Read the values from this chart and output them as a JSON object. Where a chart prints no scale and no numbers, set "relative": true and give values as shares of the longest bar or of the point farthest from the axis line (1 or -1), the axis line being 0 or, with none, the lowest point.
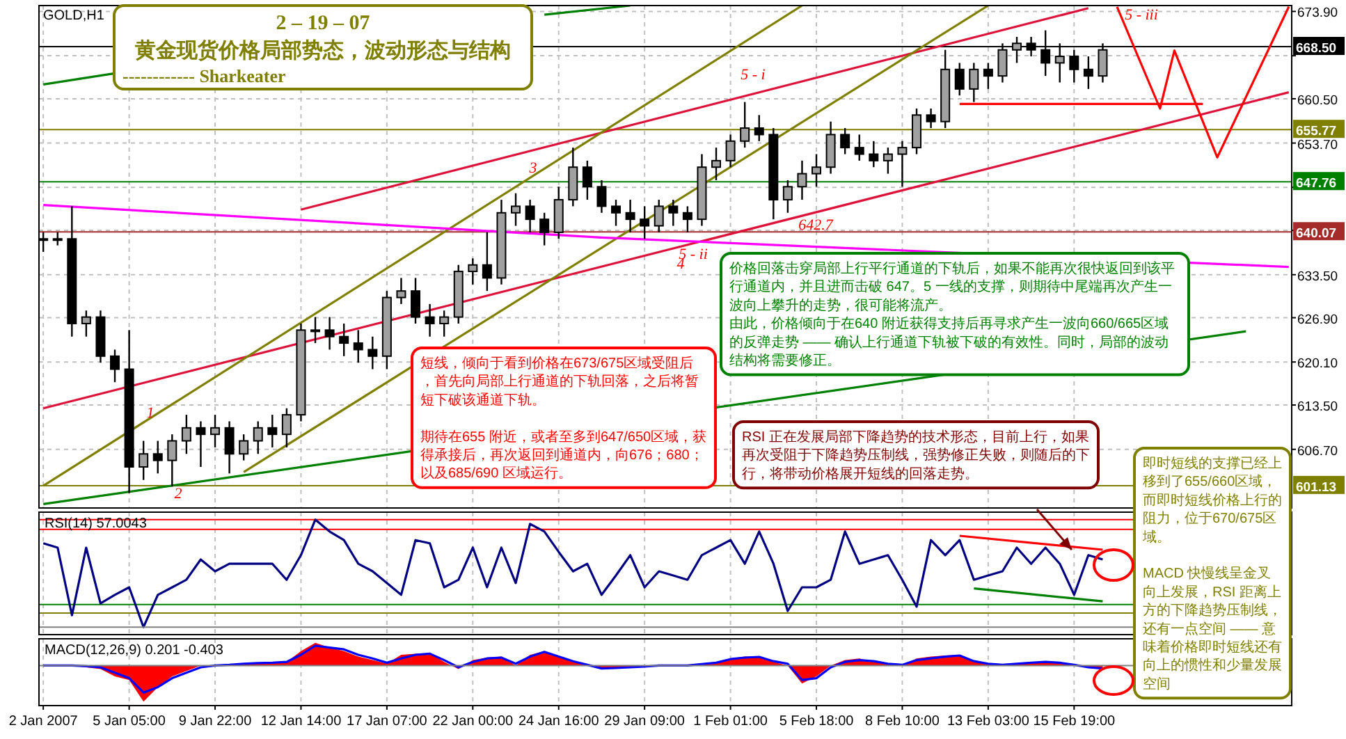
{
  "chart_data": [
    {
      "type": "candlestick",
      "title": "2 – 19 – 07",
      "subtitle": "黄金现货价格局部势态，波动形态与结构",
      "annotations": [
        "GOLD,H1",
        "------------  Sharkeater",
        "短线，倾向于看到价格在673/675区域受阻后，首先向局部上行通道的下轨回落，之后将暂短下破该通道下轨。",
        "期待在655 附近，或者至多到647/650区域，获得承接后，再次返回到通道内，向676；680；以及685/690 区域运行。",
        "价格回落击穿局部上行平行通道的下轨后，如果不能再次很快返回到该平行通道内，并且进而击破 647。5 一线的支撑，则期待中尾端再次产生一波向上攀升的走势，很可能将流产。",
        "由此，价格倾向于在640 附近获得支持后再寻求产生一波向660/665区域的反弹走势 —— 确认上行通道下轨被下破的有效性。同时，局部的波动结构将需要修正。",
        "即时短线的支撑已经上移到了655/660区域，而即时短线价格上行的阻力，位于670/675区域。",
        "MACD 快慢线呈金叉向上发展，RSI 距离上方的下降趋势压制线，还有一点空间 —— 意味着价格即时短线还有向上的惯性和少量发展空间",
        "1",
        "2",
        "3",
        "4",
        "5 - i",
        "5 - ii",
        "642.7",
        "5 - iii"
      ],
      "categories": [
        null,
        null,
        null,
        null,
        null,
        null,
        null,
        null,
        null,
        null,
        null,
        null,
        null,
        null,
        null,
        null,
        null,
        null,
        null,
        null,
        null,
        null,
        null,
        null,
        null,
        null,
        null,
        null,
        null,
        null,
        null,
        null,
        null,
        null,
        null,
        null,
        null,
        null,
        null,
        null,
        null,
        null,
        null,
        null,
        null,
        null,
        null,
        null,
        null,
        null,
        null,
        null,
        null,
        null,
        null,
        null,
        null,
        null,
        null,
        null,
        null,
        null,
        null,
        null,
        null,
        null,
        null,
        null,
        null,
        null,
        null,
        null,
        null,
        null,
        null,
        null,
        null,
        null,
        null,
        null,
        null,
        null,
        null,
        null,
        null,
        null,
        null,
        null
      ],
      "ohlc": [
        [
          639,
          640,
          637,
          639
        ],
        [
          639,
          640,
          638,
          639
        ],
        [
          639,
          644,
          624,
          626
        ],
        [
          626,
          628,
          624,
          627
        ],
        [
          627,
          628,
          620,
          621
        ],
        [
          621,
          622,
          617,
          619
        ],
        [
          619,
          625,
          600,
          604
        ],
        [
          604,
          608,
          602,
          606
        ],
        [
          606,
          608,
          603,
          605
        ],
        [
          605,
          609,
          601,
          608
        ],
        [
          608,
          612,
          606,
          610
        ],
        [
          610,
          611,
          604,
          609
        ],
        [
          609,
          612,
          607,
          610
        ],
        [
          610,
          611,
          603,
          606
        ],
        [
          606,
          609,
          605,
          608
        ],
        [
          608,
          611,
          606,
          610
        ],
        [
          610,
          612,
          607,
          609
        ],
        [
          609,
          613,
          607,
          612
        ],
        [
          612,
          626,
          611,
          625
        ],
        [
          625,
          627,
          623,
          625
        ],
        [
          625,
          627,
          622,
          624
        ],
        [
          624,
          626,
          621,
          623
        ],
        [
          623,
          625,
          620,
          622
        ],
        [
          622,
          624,
          619,
          621
        ],
        [
          621,
          631,
          619,
          630
        ],
        [
          630,
          633,
          629,
          631
        ],
        [
          631,
          633,
          626,
          627
        ],
        [
          627,
          629,
          624,
          626
        ],
        [
          626,
          628,
          624,
          627
        ],
        [
          627,
          635,
          626,
          634
        ],
        [
          634,
          636,
          632,
          635
        ],
        [
          635,
          640,
          631,
          633
        ],
        [
          633,
          645,
          632,
          643
        ],
        [
          643,
          646,
          641,
          644
        ],
        [
          644,
          645,
          640,
          642
        ],
        [
          642,
          643,
          638,
          640
        ],
        [
          640,
          647,
          639,
          645
        ],
        [
          645,
          653,
          644,
          650
        ],
        [
          650,
          651,
          645,
          647
        ],
        [
          647,
          648,
          643,
          644
        ],
        [
          644,
          645,
          641,
          643
        ],
        [
          643,
          645,
          640,
          642
        ],
        [
          642,
          644,
          639,
          641
        ],
        [
          641,
          645,
          640,
          644
        ],
        [
          644,
          645,
          641,
          643
        ],
        [
          643,
          644,
          640,
          642
        ],
        [
          642,
          652,
          641,
          650
        ],
        [
          650,
          653,
          648,
          651
        ],
        [
          651,
          655,
          650,
          654
        ],
        [
          654,
          660,
          653,
          656
        ],
        [
          656,
          658,
          654,
          655
        ],
        [
          655,
          656,
          642,
          645
        ],
        [
          645,
          648,
          643,
          647
        ],
        [
          647,
          651,
          645,
          649
        ],
        [
          649,
          652,
          647,
          650
        ],
        [
          650,
          657,
          649,
          655
        ],
        [
          655,
          656,
          652,
          653
        ],
        [
          653,
          655,
          651,
          652
        ],
        [
          652,
          654,
          650,
          651
        ],
        [
          651,
          653,
          649,
          652
        ],
        [
          652,
          654,
          647,
          653
        ],
        [
          653,
          659,
          652,
          658
        ],
        [
          658,
          659,
          656,
          657
        ],
        [
          657,
          668,
          656,
          665
        ],
        [
          665,
          666,
          661,
          662
        ],
        [
          662,
          666,
          660,
          665
        ],
        [
          665,
          666,
          662,
          664
        ],
        [
          664,
          669,
          663,
          668
        ],
        [
          668,
          670,
          666,
          669
        ],
        [
          669,
          670,
          667,
          668
        ],
        [
          668,
          671,
          664,
          666
        ],
        [
          666,
          669,
          663,
          667
        ],
        [
          667,
          668,
          663,
          665
        ],
        [
          665,
          667,
          662,
          664
        ],
        [
          664,
          669,
          663,
          668
        ],
        null,
        null,
        null,
        null,
        null,
        null,
        null,
        null,
        null,
        null,
        null,
        null,
        null
      ],
      "series": [
        {
          "type": "line",
          "color": "#dc143c",
          "values": [
            null,
            null,
            null,
            null,
            null,
            null,
            null,
            null,
            null,
            null,
            null,
            null,
            null,
            null,
            null,
            null,
            null,
            null,
            643.5,
            null,
            null,
            null,
            null,
            null,
            null,
            null,
            null,
            null,
            null,
            null,
            null,
            null,
            null,
            null,
            null,
            null,
            null,
            null,
            null,
            null,
            null,
            null,
            null,
            null,
            null,
            null,
            null,
            null,
            null,
            null,
            null,
            null,
            null,
            null,
            null,
            null,
            null,
            null,
            null,
            null,
            null,
            null,
            null,
            null,
            null,
            null,
            null,
            null,
            null,
            null,
            null,
            null,
            null,
            674.4,
            null,
            null,
            null,
            null,
            null,
            null,
            null,
            null,
            null,
            null,
            null,
            null,
            null,
            null
          ]
        },
        {
          "type": "line",
          "color": "#dc143c",
          "values": [
            613.0,
            null,
            null,
            null,
            null,
            null,
            null,
            null,
            null,
            null,
            null,
            null,
            null,
            null,
            null,
            null,
            null,
            null,
            null,
            null,
            null,
            null,
            null,
            null,
            null,
            null,
            null,
            null,
            null,
            null,
            null,
            null,
            null,
            null,
            null,
            null,
            null,
            null,
            null,
            null,
            null,
            null,
            null,
            null,
            null,
            null,
            null,
            null,
            null,
            null,
            null,
            null,
            null,
            null,
            null,
            null,
            null,
            null,
            null,
            null,
            null,
            null,
            null,
            null,
            null,
            null,
            null,
            null,
            null,
            null,
            null,
            null,
            null,
            null,
            null,
            null,
            null,
            null,
            null,
            null,
            null,
            null,
            null,
            null,
            null,
            null,
            null,
            661.5
          ]
        },
        {
          "type": "line",
          "color": "#ff0000",
          "values": [
            null,
            null,
            null,
            null,
            null,
            null,
            null,
            null,
            null,
            null,
            null,
            null,
            null,
            null,
            null,
            null,
            null,
            null,
            null,
            null,
            null,
            null,
            null,
            null,
            null,
            null,
            null,
            null,
            null,
            null,
            null,
            null,
            null,
            null,
            null,
            null,
            null,
            null,
            null,
            null,
            null,
            null,
            null,
            null,
            null,
            null,
            null,
            null,
            null,
            null,
            null,
            null,
            null,
            null,
            null,
            null,
            null,
            null,
            null,
            null,
            null,
            null,
            null,
            null,
            659.7,
            null,
            null,
            null,
            null,
            null,
            null,
            null,
            null,
            null,
            null,
            null,
            null,
            null,
            null,
            null,
            null,
            659.7,
            null,
            null,
            null,
            null,
            null,
            null
          ]
        },
        {
          "type": "line",
          "color": "#ff0000",
          "values": [
            null,
            null,
            null,
            null,
            null,
            null,
            null,
            null,
            null,
            null,
            null,
            null,
            null,
            null,
            null,
            null,
            null,
            null,
            null,
            null,
            null,
            null,
            null,
            null,
            null,
            null,
            null,
            null,
            null,
            null,
            null,
            null,
            null,
            null,
            null,
            null,
            null,
            null,
            null,
            null,
            null,
            null,
            null,
            null,
            null,
            null,
            null,
            null,
            null,
            null,
            null,
            null,
            null,
            null,
            null,
            null,
            null,
            null,
            null,
            null,
            null,
            null,
            null,
            null,
            null,
            null,
            null,
            null,
            null,
            null,
            null,
            null,
            null,
            null,
            null,
            674.6,
            null,
            null,
            659.0,
            667.9,
            null,
            null,
            651.5,
            null,
            null,
            null,
            null,
            674.6
          ]
        },
        {
          "type": "line",
          "color": "#008000",
          "values": [
            662.7,
            null,
            null,
            null,
            null,
            664.4,
            null,
            null,
            null,
            null,
            null,
            null,
            null,
            null,
            null,
            null,
            null,
            null,
            null,
            null,
            null,
            null,
            null,
            null,
            null,
            null,
            null,
            null,
            null,
            null,
            null,
            null,
            null,
            null,
            null,
            null,
            null,
            null,
            null,
            null,
            null,
            null,
            null,
            null,
            null,
            null,
            null,
            null,
            null,
            null,
            null,
            null,
            null,
            null,
            null,
            null,
            null,
            null,
            null,
            null,
            null,
            null,
            null,
            null,
            null,
            null,
            null,
            null,
            null,
            null,
            null,
            null,
            null,
            null,
            null,
            null,
            null,
            null,
            null,
            null,
            null,
            null,
            null,
            null,
            null,
            null,
            null,
            null
          ]
        },
        {
          "type": "line",
          "color": "#008000",
          "values": [
            null,
            null,
            null,
            null,
            null,
            null,
            null,
            null,
            null,
            null,
            null,
            null,
            null,
            null,
            null,
            null,
            null,
            null,
            null,
            null,
            null,
            null,
            null,
            null,
            null,
            null,
            null,
            null,
            null,
            null,
            null,
            null,
            null,
            null,
            null,
            673.4,
            null,
            null,
            null,
            null,
            null,
            674.8,
            null,
            null,
            null,
            null,
            null,
            null,
            null,
            null,
            null,
            null,
            null,
            null,
            null,
            null,
            null,
            null,
            null,
            null,
            null,
            null,
            null,
            null,
            null,
            null,
            null,
            null,
            null,
            null,
            null,
            null,
            null,
            null,
            null,
            null,
            null,
            null,
            null,
            null,
            null,
            null,
            null,
            null,
            null,
            null,
            null,
            null
          ]
        },
        {
          "type": "line",
          "color": "#008000",
          "values": [
            598.3,
            null,
            null,
            null,
            null,
            null,
            null,
            null,
            null,
            null,
            null,
            null,
            null,
            null,
            null,
            null,
            null,
            null,
            null,
            null,
            null,
            null,
            null,
            null,
            null,
            null,
            null,
            null,
            null,
            null,
            null,
            null,
            null,
            null,
            null,
            null,
            null,
            null,
            null,
            null,
            null,
            null,
            null,
            null,
            null,
            null,
            null,
            null,
            null,
            null,
            null,
            null,
            null,
            null,
            null,
            null,
            null,
            null,
            null,
            null,
            null,
            null,
            null,
            null,
            null,
            null,
            null,
            null,
            null,
            null,
            null,
            null,
            null,
            null,
            null,
            null,
            null,
            null,
            null,
            null,
            null,
            null,
            null,
            null,
            624.8,
            null,
            null,
            null
          ]
        },
        {
          "type": "line",
          "color": "#808000",
          "values": [
            null,
            null,
            null,
            null,
            null,
            null,
            null,
            null,
            null,
            null,
            null,
            null,
            null,
            null,
            603.2,
            null,
            null,
            null,
            null,
            null,
            null,
            null,
            null,
            null,
            null,
            null,
            null,
            null,
            null,
            null,
            null,
            null,
            null,
            null,
            null,
            null,
            null,
            null,
            null,
            null,
            null,
            null,
            null,
            null,
            null,
            null,
            null,
            null,
            null,
            null,
            null,
            null,
            null,
            null,
            null,
            null,
            null,
            null,
            null,
            null,
            null,
            null,
            null,
            null,
            null,
            null,
            674.8,
            null,
            null,
            null,
            null,
            null,
            null,
            null,
            null,
            null,
            null,
            null,
            null,
            null,
            null,
            null,
            null,
            null,
            null,
            null,
            null,
            null
          ]
        },
        {
          "type": "line",
          "color": "#808000",
          "values": [
            601.1,
            null,
            null,
            null,
            null,
            null,
            null,
            null,
            null,
            null,
            null,
            null,
            null,
            null,
            null,
            null,
            null,
            null,
            null,
            null,
            null,
            null,
            null,
            null,
            null,
            null,
            null,
            null,
            null,
            null,
            null,
            null,
            null,
            null,
            null,
            null,
            null,
            null,
            null,
            null,
            null,
            null,
            null,
            null,
            null,
            null,
            null,
            null,
            null,
            null,
            null,
            null,
            null,
            674.8,
            null,
            null,
            null,
            null,
            null,
            null,
            null,
            null,
            null,
            null,
            null,
            null,
            null,
            null,
            null,
            null,
            null,
            null,
            null,
            null,
            null,
            null,
            null,
            null,
            null,
            null,
            null,
            null,
            null,
            null,
            null,
            null,
            null,
            null
          ]
        },
        {
          "type": "line",
          "color": "#ff00ff",
          "values": [
            644.2,
            null,
            null,
            null,
            null,
            null,
            null,
            null,
            null,
            null,
            null,
            null,
            null,
            null,
            null,
            null,
            null,
            null,
            null,
            null,
            null,
            null,
            null,
            null,
            null,
            null,
            null,
            null,
            null,
            null,
            null,
            null,
            null,
            null,
            null,
            null,
            null,
            null,
            null,
            639.2,
            null,
            null,
            null,
            null,
            null,
            null,
            null,
            null,
            null,
            null,
            null,
            null,
            null,
            null,
            null,
            null,
            null,
            null,
            null,
            null,
            null,
            null,
            null,
            null,
            null,
            null,
            null,
            null,
            null,
            null,
            null,
            null,
            null,
            null,
            null,
            null,
            null,
            null,
            null,
            null,
            null,
            null,
            null,
            null,
            null,
            null,
            null,
            634.7
          ]
        }
      ],
      "ref_lines": [
        {
          "axis": "y",
          "value": 668.5,
          "label": "668.50",
          "color": "#000000"
        },
        {
          "axis": "y",
          "value": 655.77,
          "label": "655.77",
          "color": "#808000"
        },
        {
          "axis": "y",
          "value": 647.76,
          "label": "647.76",
          "color": "#008000"
        },
        {
          "axis": "y",
          "value": 640.07,
          "label": "640.07",
          "color": "#a52a2a"
        },
        {
          "axis": "y",
          "value": 601.13,
          "label": "601.13",
          "color": "#808000"
        }
      ],
      "ylim": [
        597.7,
        674.8
      ],
      "yticks": [
        {
          "value": 673.9,
          "label": "673.90"
        },
        {
          "value": 667.1,
          "label": null
        },
        {
          "value": 660.5,
          "label": "660.50"
        },
        {
          "value": 653.7,
          "label": "653.70"
        },
        {
          "value": 646.9,
          "label": null
        },
        {
          "value": 640.3,
          "label": null
        },
        {
          "value": 633.5,
          "label": "633.50"
        },
        {
          "value": 626.9,
          "label": "626.90"
        },
        {
          "value": 620.1,
          "label": "620.10"
        },
        {
          "value": 613.5,
          "label": "613.50"
        },
        {
          "value": 606.7,
          "label": "606.70"
        }
      ],
      "grid": true,
      "tick_labels": "y"
    },
    {
      "type": "line",
      "title": "RSI(14) 57.0043",
      "relative": true,
      "annotations": [
        "RSI 正在发展局部下降趋势的技术形态，目前上行，如果再次受阻于下降趋势压制线，强势修正失败，则随后的下行，将带动价格展开短线的回落走势。"
      ],
      "categories": [
        null,
        null,
        null,
        null,
        null,
        null,
        null,
        null,
        null,
        null,
        null,
        null,
        null,
        null,
        null,
        null,
        null,
        null,
        null,
        null,
        null,
        null,
        null,
        null,
        null,
        null,
        null,
        null,
        null,
        null,
        null,
        null,
        null,
        null,
        null,
        null,
        null,
        null,
        null,
        null,
        null,
        null,
        null,
        null,
        null,
        null,
        null,
        null,
        null,
        null,
        null,
        null,
        null,
        null,
        null,
        null,
        null,
        null,
        null,
        null,
        null,
        null,
        null,
        null,
        null,
        null,
        null,
        null,
        null,
        null,
        null,
        null,
        null,
        null,
        null
      ],
      "series": [
        {
          "color": "#000080",
          "values": [
            0.78,
            0.74,
            0.11,
            0.74,
            0.22,
            0.3,
            0.37,
            0,
            0.3,
            0.37,
            0.44,
            0.63,
            0.52,
            0.59,
            0.59,
            0.59,
            0.59,
            0.44,
            0.67,
            1,
            0.89,
            0.81,
            0.59,
            0.52,
            0.41,
            0.3,
            0.81,
            0.78,
            0.37,
            0.44,
            0.74,
            0.37,
            0.74,
            0.41,
            0.96,
            0.89,
            0.7,
            0.52,
            0.59,
            0.3,
            0.48,
            0.67,
            0.37,
            0.52,
            0.48,
            0.44,
            0.67,
            0.74,
            0.81,
            0.59,
            0.89,
            0.59,
            0.15,
            0.37,
            0.37,
            0.44,
            0.89,
            0.59,
            0.63,
            0.67,
            0.44,
            0.19,
            0.81,
            0.67,
            0.81,
            0.44,
            0.48,
            0.52,
            0.74,
            0.59,
            0.74,
            0.59,
            0.3,
            0.67,
            0.63
          ]
        },
        {
          "color": "#ff0000",
          "values": [
            null,
            null,
            null,
            null,
            null,
            null,
            null,
            null,
            null,
            null,
            null,
            null,
            null,
            null,
            null,
            null,
            null,
            null,
            null,
            null,
            null,
            null,
            null,
            null,
            null,
            null,
            null,
            null,
            null,
            null,
            null,
            null,
            null,
            null,
            null,
            null,
            null,
            null,
            null,
            null,
            null,
            null,
            null,
            null,
            null,
            null,
            null,
            null,
            null,
            null,
            null,
            null,
            null,
            null,
            null,
            null,
            null,
            null,
            null,
            null,
            null,
            null,
            null,
            null,
            0.85,
            null,
            null,
            null,
            null,
            null,
            null,
            null,
            null,
            null,
            0.72
          ]
        },
        {
          "color": "#008000",
          "values": [
            null,
            null,
            null,
            null,
            null,
            null,
            null,
            null,
            null,
            null,
            null,
            null,
            null,
            null,
            null,
            null,
            null,
            null,
            null,
            null,
            null,
            null,
            null,
            null,
            null,
            null,
            null,
            null,
            null,
            null,
            null,
            null,
            null,
            null,
            null,
            null,
            null,
            null,
            null,
            null,
            null,
            null,
            null,
            null,
            null,
            null,
            null,
            null,
            null,
            null,
            null,
            null,
            null,
            null,
            null,
            null,
            null,
            null,
            null,
            null,
            null,
            null,
            null,
            null,
            null,
            0.36,
            null,
            null,
            null,
            null,
            null,
            null,
            null,
            null,
            0.24
          ]
        }
      ],
      "ref_lines": [
        {
          "axis": "y",
          "value": 1,
          "color": "#ff0000"
        },
        {
          "axis": "y",
          "value": 0.91,
          "color": "#ff0000"
        },
        {
          "axis": "y",
          "value": 0.21,
          "color": "#008000"
        },
        {
          "axis": "y",
          "value": 0.13,
          "color": "#808000"
        }
      ],
      "grid": "x",
      "tick_labels": false
    },
    {
      "type": "area",
      "title": "MACD(12,26,9) 0.201 -0.403",
      "relative": true,
      "categories": [
        "2 Jan 2007",
        null,
        null,
        null,
        null,
        null,
        "5 Jan 05:00",
        null,
        null,
        null,
        null,
        null,
        "9 Jan 22:00",
        null,
        null,
        null,
        null,
        null,
        "12 Jan 14:00",
        null,
        null,
        null,
        null,
        null,
        "17 Jan 07:00",
        null,
        null,
        null,
        null,
        null,
        "22 Jan 00:00",
        null,
        null,
        null,
        null,
        null,
        "24 Jan 16:00",
        null,
        null,
        null,
        null,
        null,
        "29 Jan 09:00",
        null,
        null,
        null,
        null,
        null,
        "1 Feb 01:00",
        null,
        null,
        null,
        null,
        null,
        "5 Feb 18:00",
        null,
        null,
        null,
        null,
        null,
        "8 Feb 10:00",
        null,
        null,
        null,
        null,
        null,
        "13 Feb 03:00",
        null,
        null,
        null,
        null,
        null,
        "15 Feb 19:00",
        null,
        null,
        null,
        null,
        null,
        null,
        null,
        null,
        null,
        null,
        null,
        null,
        null,
        null,
        null
      ],
      "series": [
        {
          "type": "area",
          "color": "#ff0000",
          "values": [
            0,
            0,
            0,
            -0.05,
            -0.1,
            -0.3,
            -0.4,
            -1,
            -0.6,
            -0.3,
            -0.15,
            0,
            0,
            0.02,
            0.05,
            0.07,
            0.08,
            0.1,
            0.4,
            0.63,
            0.5,
            0.4,
            0.25,
            0.15,
            0.05,
            0.3,
            0.33,
            0.35,
            0.1,
            -0.1,
            0.15,
            0.22,
            0.25,
            0,
            0.3,
            0.4,
            0.25,
            0.1,
            0,
            -0.1,
            -0.08,
            -0.05,
            -0.03,
            0,
            0,
            0,
            0.05,
            0.1,
            0.2,
            0.25,
            0.25,
            0.1,
            0,
            -0.5,
            -0.3,
            0,
            0.15,
            0.2,
            0.1,
            0.05,
            0,
            0.2,
            0.25,
            0.28,
            0.3,
            0.1,
            0.05,
            0,
            0.05,
            0.1,
            0.1,
            0.1,
            0,
            -0.05,
            -0.1,
            null,
            null,
            null,
            null,
            null,
            null,
            null,
            null,
            null,
            null,
            null,
            null,
            null
          ]
        },
        {
          "type": "line",
          "color": "#0000ff",
          "values": [
            0,
            0,
            0,
            -0.02,
            -0.05,
            -0.2,
            -0.35,
            -0.75,
            -0.6,
            -0.35,
            -0.2,
            -0.05,
            0,
            0.02,
            0.05,
            0.07,
            0.08,
            0.1,
            0.3,
            0.55,
            0.5,
            0.45,
            0.3,
            0.2,
            0.08,
            0.2,
            0.3,
            0.33,
            0.15,
            -0.05,
            0.1,
            0.2,
            0.22,
            0.05,
            0.25,
            0.38,
            0.25,
            0.12,
            0.02,
            -0.08,
            -0.07,
            -0.05,
            -0.03,
            0,
            0,
            0,
            0.04,
            0.08,
            0.18,
            0.22,
            0.24,
            0.12,
            0.05,
            -0.4,
            -0.35,
            -0.05,
            0.1,
            0.15,
            0.12,
            0.05,
            0.02,
            0.15,
            0.2,
            0.25,
            0.28,
            0.12,
            0.05,
            0.02,
            0.05,
            0.08,
            0.1,
            0.08,
            0.02,
            -0.05,
            -0.08,
            null,
            null,
            null,
            null,
            null,
            null,
            null,
            null,
            null,
            null,
            null,
            null,
            null
          ]
        }
      ],
      "grid": "x",
      "tick_labels": "x"
    }
  ]
}
